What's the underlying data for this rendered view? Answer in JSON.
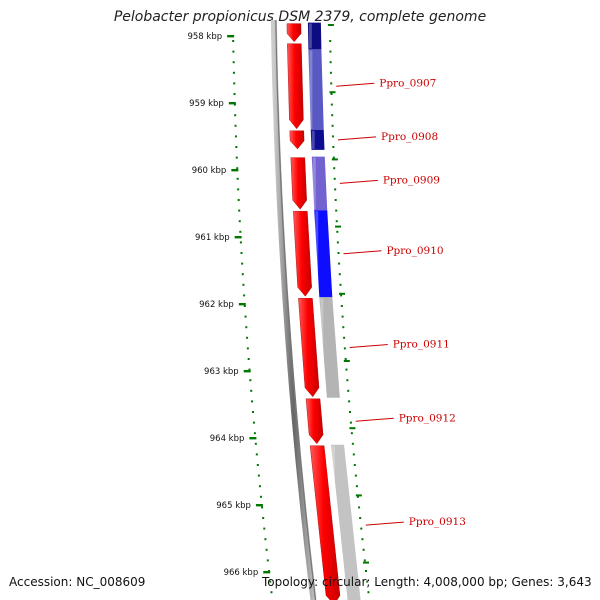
{
  "title": "Pelobacter propionicus DSM 2379, complete genome",
  "accession": "Accession: NC_008609",
  "summary": "Topology: circular; Length: 4,008,000 bp; Genes: 3,643",
  "ruler": [
    {
      "label": "958 kbp",
      "kbp": 958
    },
    {
      "label": "959 kbp",
      "kbp": 959
    },
    {
      "label": "960 kbp",
      "kbp": 960
    },
    {
      "label": "961 kbp",
      "kbp": 961
    },
    {
      "label": "962 kbp",
      "kbp": 962
    },
    {
      "label": "963 kbp",
      "kbp": 963
    },
    {
      "label": "964 kbp",
      "kbp": 964
    },
    {
      "label": "965 kbp",
      "kbp": 965
    },
    {
      "label": "966 kbp",
      "kbp": 966
    }
  ],
  "genes": [
    {
      "name": "",
      "start_kbp": 957.8,
      "end_kbp": 958.1
    },
    {
      "name": "Ppro_0907",
      "start_kbp": 958.1,
      "end_kbp": 959.4
    },
    {
      "name": "Ppro_0908",
      "start_kbp": 959.4,
      "end_kbp": 959.7
    },
    {
      "name": "Ppro_0909",
      "start_kbp": 959.8,
      "end_kbp": 960.6
    },
    {
      "name": "Ppro_0910",
      "start_kbp": 960.6,
      "end_kbp": 961.9
    },
    {
      "name": "Ppro_0911",
      "start_kbp": 961.9,
      "end_kbp": 963.4
    },
    {
      "name": "Ppro_0912",
      "start_kbp": 963.4,
      "end_kbp": 964.1
    },
    {
      "name": "Ppro_0913",
      "start_kbp": 964.1,
      "end_kbp": 966.5
    }
  ],
  "outer_track": [
    {
      "start_kbp": 957.8,
      "end_kbp": 958.2,
      "color": "#00007a"
    },
    {
      "start_kbp": 958.2,
      "end_kbp": 959.4,
      "color": "#5050c0"
    },
    {
      "start_kbp": 959.4,
      "end_kbp": 959.7,
      "color": "#00008b"
    },
    {
      "start_kbp": 959.8,
      "end_kbp": 960.6,
      "color": "#6a5acd"
    },
    {
      "start_kbp": 960.6,
      "end_kbp": 961.9,
      "color": "#0000ff"
    },
    {
      "start_kbp": 961.9,
      "end_kbp": 963.4,
      "color": "#b0b0b0"
    },
    {
      "start_kbp": 964.1,
      "end_kbp": 966.5,
      "color": "#c0c0c0"
    }
  ],
  "colors": {
    "gene": "#ff0000",
    "backbone": "#777777",
    "ruler_tick": "#007700",
    "label": "#cc0000"
  }
}
